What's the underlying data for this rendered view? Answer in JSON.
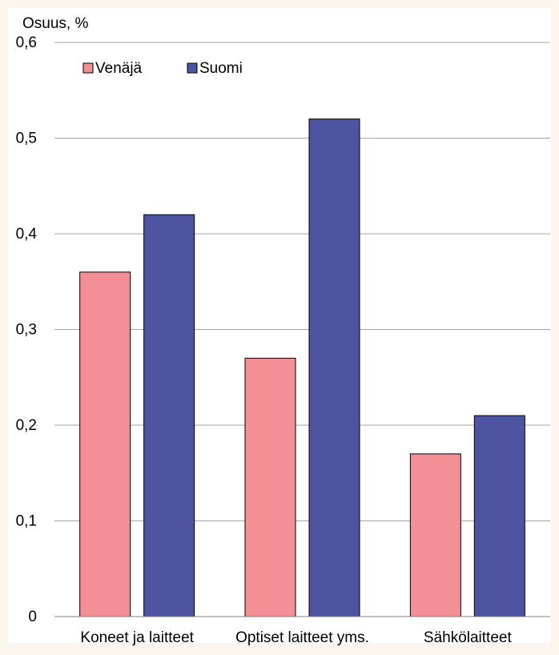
{
  "chart_data": {
    "type": "bar",
    "ylabel": "Osuus, %",
    "categories": [
      "Koneet ja laitteet",
      "Optiset laitteet yms.",
      "Sähkölaitteet"
    ],
    "series": [
      {
        "name": "Venäjä",
        "values": [
          0.36,
          0.27,
          0.17
        ],
        "color": "#f29096"
      },
      {
        "name": "Suomi",
        "values": [
          0.42,
          0.52,
          0.21
        ],
        "color": "#4d55a3"
      }
    ],
    "ylim": [
      0,
      0.6
    ],
    "yticks": [
      "0",
      "0,1",
      "0,2",
      "0,3",
      "0,4",
      "0,5",
      "0,6"
    ],
    "grid": true,
    "legend_position": "top-left",
    "colors": {
      "background": "#fbf5ee",
      "plot_background": "#ffffff",
      "gridline": "#a6a6a6"
    }
  }
}
